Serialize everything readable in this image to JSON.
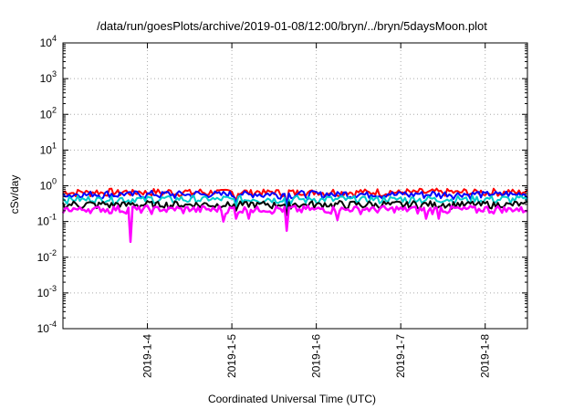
{
  "chart_data": {
    "type": "line",
    "title": "/data/run/goesPlots/archive/2019-01-08/12:00/bryn/../bryn/5daysMoon.plot",
    "xlabel": "Coordinated Universal Time (UTC)",
    "ylabel": "cSv/day",
    "yscale": "log",
    "ylim": [
      0.0001,
      10000
    ],
    "xlim": [
      0,
      5.5
    ],
    "grid": true,
    "legend": "none",
    "y_ticks": [
      {
        "mantissa": "10",
        "exp": "-4",
        "value": 0.0001
      },
      {
        "mantissa": "10",
        "exp": "-3",
        "value": 0.001
      },
      {
        "mantissa": "10",
        "exp": "-2",
        "value": 0.01
      },
      {
        "mantissa": "10",
        "exp": "-1",
        "value": 0.1
      },
      {
        "mantissa": "10",
        "exp": "0",
        "value": 1
      },
      {
        "mantissa": "10",
        "exp": "1",
        "value": 10
      },
      {
        "mantissa": "10",
        "exp": "2",
        "value": 100
      },
      {
        "mantissa": "10",
        "exp": "3",
        "value": 1000
      },
      {
        "mantissa": "10",
        "exp": "4",
        "value": 10000
      }
    ],
    "x_ticks": [
      {
        "label": "2019-1-4",
        "x": 1
      },
      {
        "label": "2019-1-5",
        "x": 2
      },
      {
        "label": "2019-1-6",
        "x": 3
      },
      {
        "label": "2019-1-7",
        "x": 4
      },
      {
        "label": "2019-1-8",
        "x": 5
      }
    ],
    "series": [
      {
        "color": "#ff0000",
        "level": 0.66,
        "dips": [
          {
            "x": 2.05,
            "v": 0.4
          },
          {
            "x": 2.65,
            "v": 0.3
          }
        ]
      },
      {
        "color": "#0000ff",
        "level": 0.58,
        "dips": [
          {
            "x": 2.05,
            "v": 0.35
          },
          {
            "x": 2.65,
            "v": 0.28
          }
        ]
      },
      {
        "color": "#00cccc",
        "level": 0.42,
        "dips": [
          {
            "x": 2.05,
            "v": 0.25
          },
          {
            "x": 2.65,
            "v": 0.18
          }
        ]
      },
      {
        "color": "#000000",
        "level": 0.3,
        "dips": [
          {
            "x": 2.05,
            "v": 0.2
          },
          {
            "x": 2.65,
            "v": 0.15
          }
        ]
      },
      {
        "color": "#ff00ff",
        "level": 0.22,
        "dips": [
          {
            "x": 0.8,
            "v": 0.027
          },
          {
            "x": 1.9,
            "v": 0.1
          },
          {
            "x": 2.05,
            "v": 0.12
          },
          {
            "x": 2.2,
            "v": 0.12
          },
          {
            "x": 2.65,
            "v": 0.055
          },
          {
            "x": 3.25,
            "v": 0.11
          },
          {
            "x": 4.3,
            "v": 0.12
          },
          {
            "x": 4.45,
            "v": 0.12
          }
        ]
      }
    ]
  }
}
